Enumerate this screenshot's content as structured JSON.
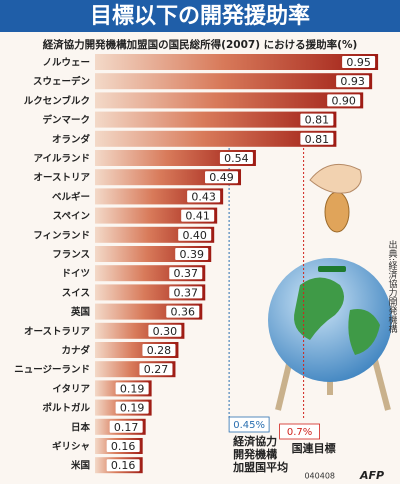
{
  "chart_data": {
    "type": "bar",
    "orientation": "horizontal",
    "title": "目標以下の開発援助率",
    "subtitle": "経済協力開発機構加盟国の国民総所得(2007) における援助率(%)",
    "categories": [
      "ノルウェー",
      "スウェーデン",
      "ルクセンブルク",
      "デンマーク",
      "オランダ",
      "アイルランド",
      "オーストリア",
      "ベルギー",
      "スペイン",
      "フィンランド",
      "フランス",
      "ドイツ",
      "スイス",
      "英国",
      "オーストラリア",
      "カナダ",
      "ニュージーランド",
      "イタリア",
      "ポルトガル",
      "日本",
      "ギリシャ",
      "米国"
    ],
    "values": [
      0.95,
      0.93,
      0.9,
      0.81,
      0.81,
      0.54,
      0.49,
      0.43,
      0.41,
      0.4,
      0.39,
      0.37,
      0.37,
      0.36,
      0.3,
      0.28,
      0.27,
      0.19,
      0.19,
      0.17,
      0.16,
      0.16
    ],
    "value_labels": [
      "0.95",
      "0.93",
      "0.90",
      "0.81",
      "0.81",
      "0.54",
      "0.49",
      "0.43",
      "0.41",
      "0.40",
      "0.39",
      "0.37",
      "0.37",
      "0.36",
      "0.30",
      "0.28",
      "0.27",
      "0.19",
      "0.19",
      "0.17",
      "0.16",
      "0.16"
    ],
    "color": "#b3261e",
    "xlim": [
      0,
      1
    ],
    "reference_lines": [
      {
        "value": 0.45,
        "label": "0.45%",
        "color": "#2a6fb0",
        "text": [
          "経済協力",
          "開発機構",
          "加盟国平均"
        ]
      },
      {
        "value": 0.7,
        "label": "0.7%",
        "color": "#d0221c",
        "text": [
          "国連目標"
        ]
      }
    ],
    "source": "出典:経済協力開発機構",
    "footer_code": "040408",
    "credit": "AFP"
  }
}
